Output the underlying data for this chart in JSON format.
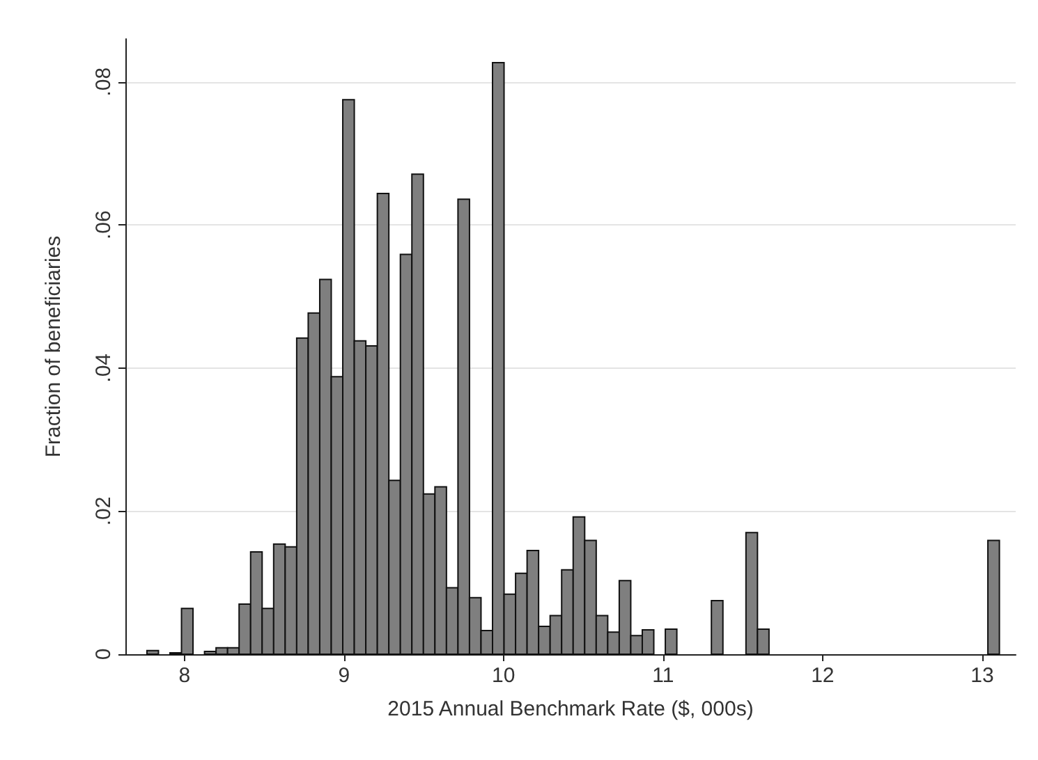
{
  "chart_data": {
    "type": "histogram",
    "xlabel": "2015 Annual Benchmark Rate ($, 000s)",
    "ylabel": "Fraction of beneficiaries",
    "bins": [
      7.765,
      7.8372,
      7.9094,
      7.9816,
      8.0538,
      8.126,
      8.1982,
      8.2704,
      8.3426,
      8.4148,
      8.487,
      8.5592,
      8.6314,
      8.7036,
      8.7758,
      8.848,
      8.9202,
      8.9924,
      9.0646,
      9.1368,
      9.209,
      9.2812,
      9.3534,
      9.4256,
      9.4978,
      9.57,
      9.6422,
      9.7144,
      9.7866,
      9.8588,
      9.931,
      10.0032,
      10.0754,
      10.1476,
      10.2198,
      10.292,
      10.3642,
      10.4364,
      10.5086,
      10.5808,
      10.653,
      10.7252,
      10.7974,
      10.8696,
      10.9418,
      11.014,
      11.0862,
      11.1584,
      11.2306,
      11.3028,
      11.375,
      11.4472,
      11.5194,
      11.5916,
      11.6638,
      11.736,
      11.8082,
      11.8804,
      11.9526,
      12.0248,
      12.097,
      12.1692,
      12.2414,
      12.3136,
      12.3858,
      12.458,
      12.5302,
      12.6024,
      12.6746,
      12.7468,
      12.819,
      12.8912,
      12.9634,
      13.0356,
      13.1078
    ],
    "values": [
      0.0005,
      0,
      0.0002,
      0.0064,
      0,
      0.0004,
      0.0009,
      0.0009,
      0.007,
      0.0143,
      0.0064,
      0.0154,
      0.015,
      0.0442,
      0.0477,
      0.0524,
      0.0388,
      0.0775,
      0.0438,
      0.0431,
      0.0644,
      0.0243,
      0.0559,
      0.0671,
      0.0224,
      0.0234,
      0.0093,
      0.0636,
      0.0079,
      0.0033,
      0.0827,
      0.0084,
      0.0113,
      0.0145,
      0.0039,
      0.0054,
      0.0118,
      0.0192,
      0.0159,
      0.0054,
      0.0031,
      0.0103,
      0.0026,
      0.0034,
      0,
      0.0035,
      0,
      0,
      0,
      0.0075,
      0,
      0,
      0.017,
      0.0035,
      0,
      0,
      0,
      0,
      0,
      0,
      0,
      0,
      0,
      0,
      0,
      0,
      0,
      0,
      0,
      0,
      0,
      0,
      0,
      0.0159
    ],
    "color": "#7f7f7f",
    "xlim": [
      7.63,
      13.21
    ],
    "xticks": [
      8,
      9,
      10,
      11,
      12,
      13
    ],
    "ylim": [
      0,
      0.086
    ],
    "yticks": [
      {
        "value": 0,
        "label": "0"
      },
      {
        "value": 0.02,
        "label": ".02"
      },
      {
        "value": 0.04,
        "label": ".04"
      },
      {
        "value": 0.06,
        "label": ".06"
      },
      {
        "value": 0.08,
        "label": ".08"
      }
    ],
    "grid": "y"
  }
}
